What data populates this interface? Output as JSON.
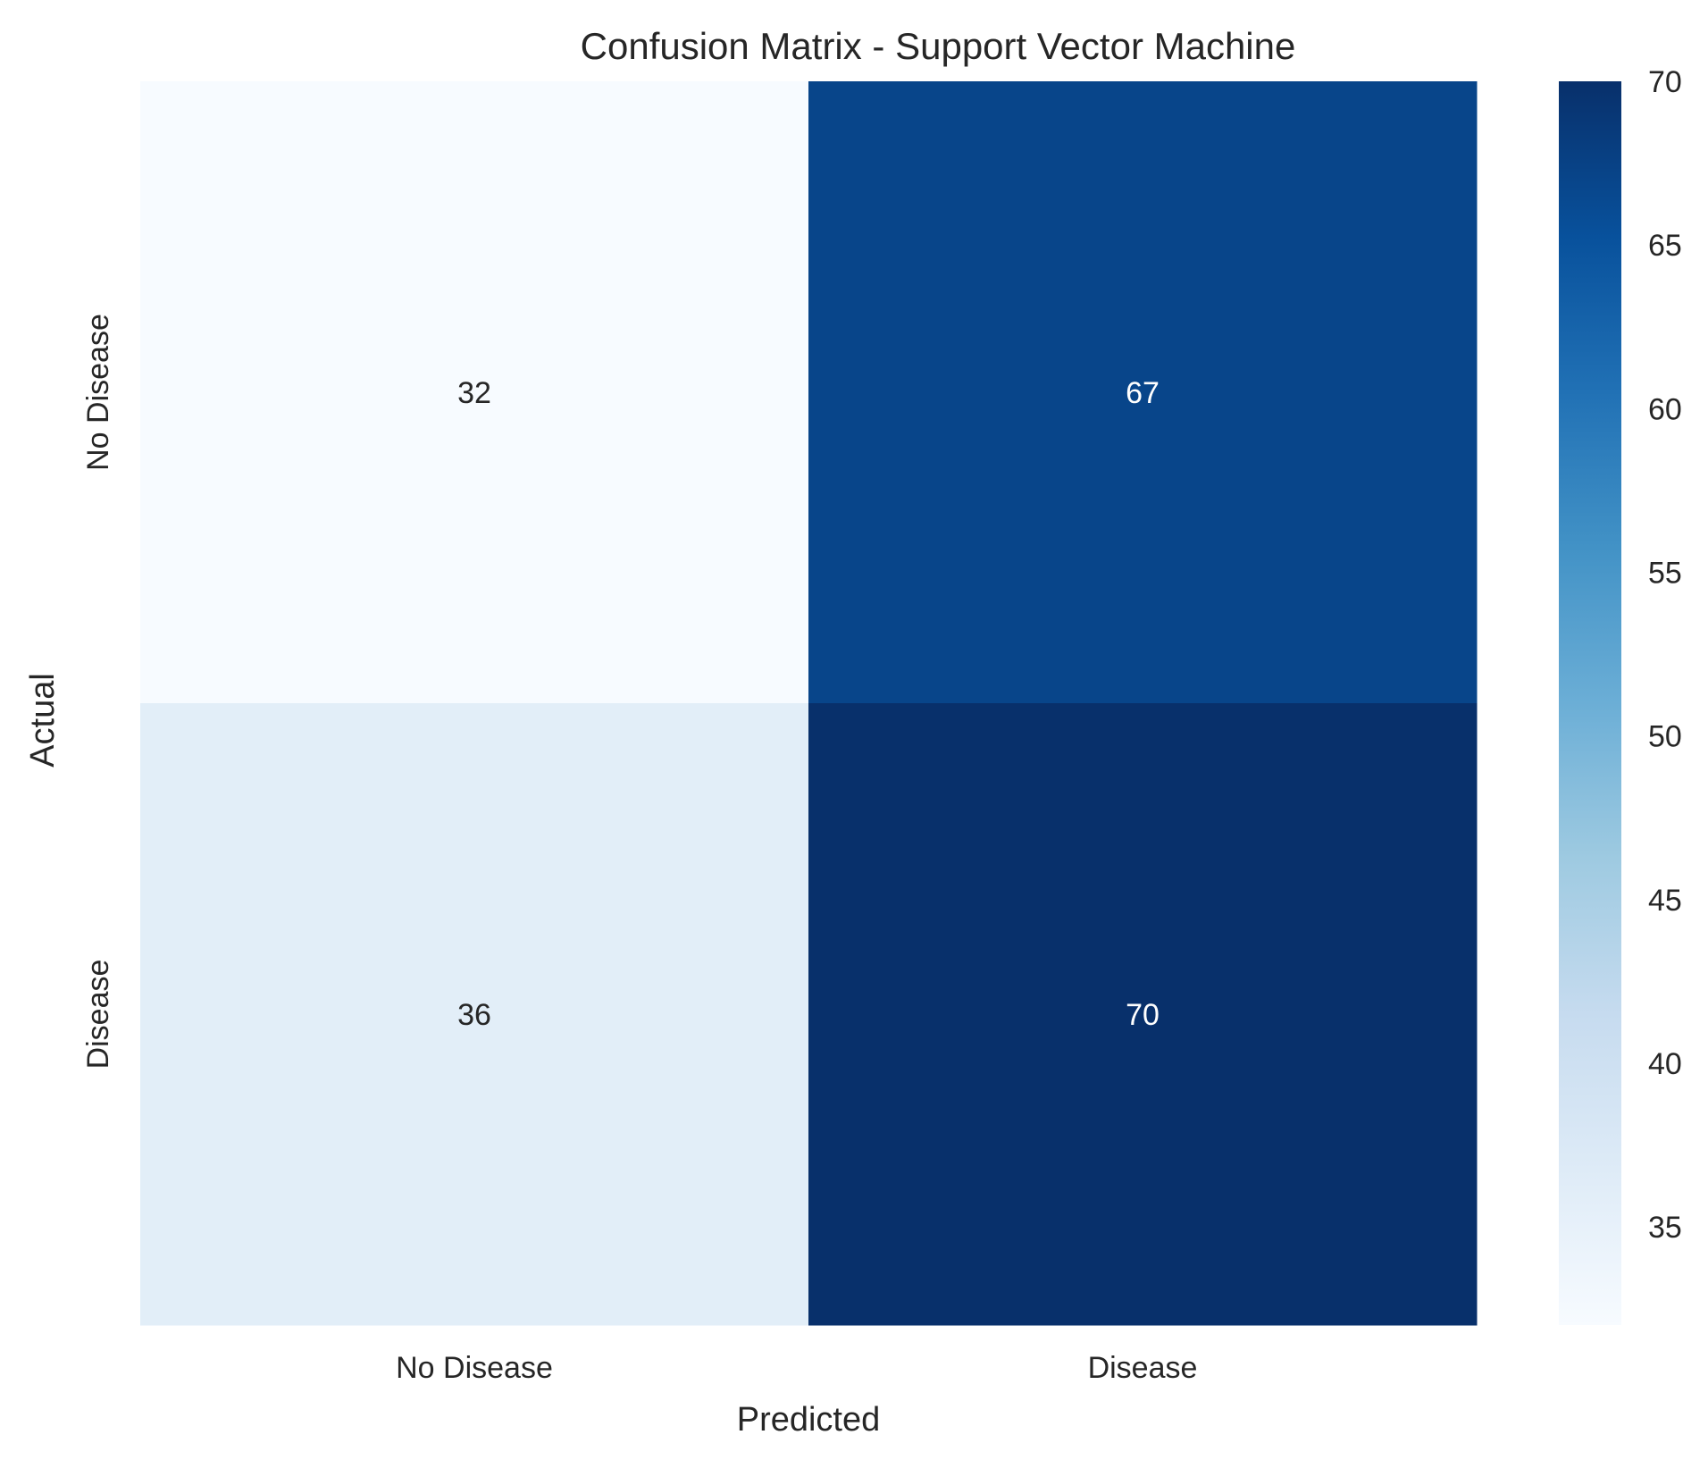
{
  "chart_data": {
    "type": "heatmap",
    "title": "Confusion Matrix - Support Vector Machine",
    "xlabel": "Predicted",
    "ylabel": "Actual",
    "x_categories": [
      "No Disease",
      "Disease"
    ],
    "y_categories": [
      "No Disease",
      "Disease"
    ],
    "values": [
      [
        32,
        67
      ],
      [
        36,
        70
      ]
    ],
    "annotations": true,
    "colormap": "Blues",
    "colorbar": {
      "range": [
        32,
        70
      ],
      "ticks": [
        35,
        40,
        45,
        50,
        55,
        60,
        65,
        70
      ],
      "placement": "right"
    },
    "grid": false
  }
}
